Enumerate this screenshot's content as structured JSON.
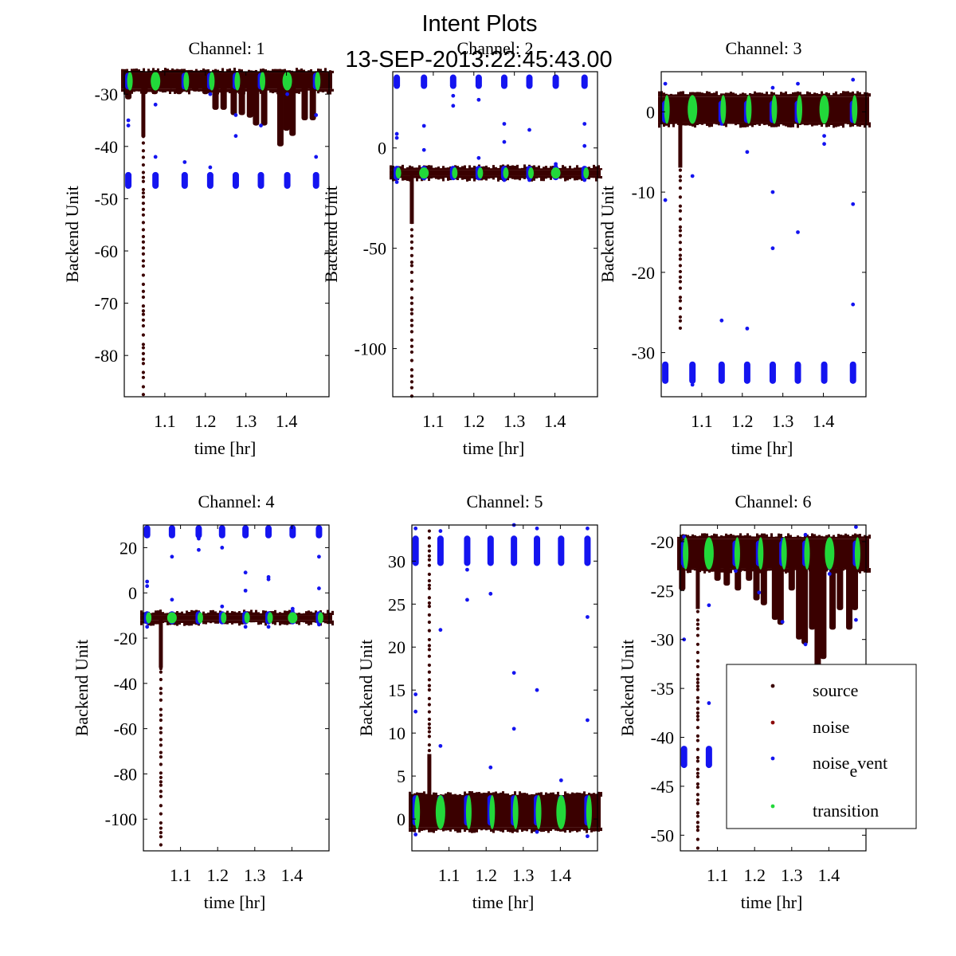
{
  "figure": {
    "title_line1": "Intent Plots",
    "title_line2": "13-SEP-2013:22:45:43.00"
  },
  "colors": {
    "source": "#3a0000",
    "noise": "#8b0a0a",
    "noise_event": "#1414f0",
    "transition": "#22d83a"
  },
  "legend": {
    "placement": "lower-right of Channel 6",
    "entries": [
      {
        "key": "source",
        "label": "source"
      },
      {
        "key": "noise",
        "label": "noise"
      },
      {
        "key": "noise_event",
        "label_main": "noise",
        "label_sub": "e",
        "label_rest": "vent"
      },
      {
        "key": "transition",
        "label": "transition"
      }
    ]
  },
  "chart_data": [
    {
      "type": "scatter",
      "title": "Channel: 1",
      "xlabel": "time [hr]",
      "ylabel": "Backend Unit",
      "xlim": [
        1.0,
        1.505
      ],
      "ylim": [
        -87.9,
        -25.7
      ],
      "xticks": [
        1.1,
        1.2,
        1.3,
        1.4
      ],
      "yticks": [
        -30,
        -40,
        -50,
        -60,
        -70,
        -80
      ],
      "grid": false,
      "source_band": {
        "center": -27.5,
        "half_width": 1.5
      },
      "source_dips": [
        [
          1.01,
          -31
        ],
        [
          1.05,
          -30
        ],
        [
          1.075,
          -30
        ],
        [
          1.115,
          -29
        ],
        [
          1.135,
          -30
        ],
        [
          1.175,
          -29.5
        ],
        [
          1.2,
          -30
        ],
        [
          1.225,
          -33
        ],
        [
          1.245,
          -33
        ],
        [
          1.27,
          -34
        ],
        [
          1.29,
          -34
        ],
        [
          1.31,
          -34.5
        ],
        [
          1.325,
          -36
        ],
        [
          1.345,
          -36
        ],
        [
          1.385,
          -40
        ],
        [
          1.4,
          -37
        ],
        [
          1.415,
          -38
        ],
        [
          1.445,
          -35
        ],
        [
          1.465,
          -35
        ]
      ],
      "source_spike": {
        "x": 1.047,
        "y_from": -29,
        "y_to": -87.9
      },
      "event_times": [
        1.01,
        1.077,
        1.149,
        1.212,
        1.275,
        1.337,
        1.402,
        1.473
      ],
      "event_levels": [
        -27.5,
        -46.5
      ],
      "event_spread": 1.0,
      "event_outliers": [
        [
          1.01,
          -35
        ],
        [
          1.01,
          -36
        ],
        [
          1.077,
          -32
        ],
        [
          1.077,
          -42
        ],
        [
          1.149,
          -43
        ],
        [
          1.212,
          -30
        ],
        [
          1.212,
          -44
        ],
        [
          1.275,
          -34
        ],
        [
          1.275,
          -38
        ],
        [
          1.337,
          -36
        ],
        [
          1.402,
          -30
        ],
        [
          1.473,
          -34
        ],
        [
          1.473,
          -42
        ]
      ],
      "transition_times": [
        1.01,
        1.077,
        1.149,
        1.212,
        1.275,
        1.337,
        1.402,
        1.473
      ],
      "transition_wide": [
        1.077,
        1.402
      ]
    },
    {
      "type": "scatter",
      "title": "Channel: 2",
      "xlabel": "time [hr]",
      "ylabel": "Backend Unit",
      "xlim": [
        1.0,
        1.505
      ],
      "ylim": [
        -124,
        38
      ],
      "xticks": [
        1.1,
        1.2,
        1.3,
        1.4
      ],
      "yticks": [
        0,
        -50,
        -100
      ],
      "grid": false,
      "source_band": {
        "center": -12.5,
        "half_width": 1.5
      },
      "source_dips": [],
      "source_spike": {
        "x": 1.047,
        "y_from": -14,
        "y_to": -124
      },
      "event_times": [
        1.01,
        1.077,
        1.149,
        1.212,
        1.275,
        1.337,
        1.402,
        1.473
      ],
      "event_levels": [
        33,
        -12.5
      ],
      "event_spread": 2.0,
      "event_outliers": [
        [
          1.01,
          7
        ],
        [
          1.01,
          5
        ],
        [
          1.01,
          -17
        ],
        [
          1.077,
          11
        ],
        [
          1.077,
          -1
        ],
        [
          1.149,
          21
        ],
        [
          1.149,
          26
        ],
        [
          1.212,
          24
        ],
        [
          1.212,
          -5
        ],
        [
          1.275,
          3
        ],
        [
          1.275,
          12
        ],
        [
          1.275,
          -16
        ],
        [
          1.337,
          9
        ],
        [
          1.337,
          -16
        ],
        [
          1.402,
          -8
        ],
        [
          1.402,
          -9
        ],
        [
          1.473,
          12
        ],
        [
          1.473,
          1
        ],
        [
          1.473,
          -16
        ]
      ],
      "transition_times": [
        1.01,
        1.077,
        1.149,
        1.212,
        1.275,
        1.337,
        1.402,
        1.473
      ],
      "transition_wide": [
        1.077,
        1.402
      ]
    },
    {
      "type": "scatter",
      "title": "Channel: 3",
      "xlabel": "time [hr]",
      "ylabel": "Backend Unit",
      "xlim": [
        1.0,
        1.505
      ],
      "ylim": [
        -35.5,
        5
      ],
      "xticks": [
        1.1,
        1.2,
        1.3,
        1.4
      ],
      "yticks": [
        0,
        -10,
        -20,
        -30
      ],
      "grid": false,
      "source_band": {
        "center": 0.3,
        "half_width": 1.6
      },
      "source_dips": [],
      "source_spike": {
        "x": 1.047,
        "y_from": -1,
        "y_to": -28
      },
      "event_times": [
        1.01,
        1.077,
        1.149,
        1.212,
        1.275,
        1.337,
        1.402,
        1.473
      ],
      "event_levels": [
        0,
        -32.5
      ],
      "event_spread": 1.0,
      "event_outliers": [
        [
          1.01,
          3.5
        ],
        [
          1.01,
          -11
        ],
        [
          1.077,
          -8
        ],
        [
          1.077,
          -34
        ],
        [
          1.149,
          -1.5
        ],
        [
          1.149,
          -26
        ],
        [
          1.212,
          -5
        ],
        [
          1.212,
          -27
        ],
        [
          1.275,
          3
        ],
        [
          1.275,
          -10
        ],
        [
          1.275,
          -17
        ],
        [
          1.337,
          3.5
        ],
        [
          1.337,
          -15
        ],
        [
          1.402,
          -3
        ],
        [
          1.402,
          -4
        ],
        [
          1.473,
          4
        ],
        [
          1.473,
          -11.5
        ],
        [
          1.473,
          -24
        ]
      ],
      "transition_times": [
        1.01,
        1.077,
        1.149,
        1.212,
        1.275,
        1.337,
        1.402,
        1.473
      ],
      "transition_wide": [
        1.077,
        1.402
      ]
    },
    {
      "type": "scatter",
      "title": "Channel: 4",
      "xlabel": "time [hr]",
      "ylabel": "Backend Unit",
      "xlim": [
        1.0,
        1.5
      ],
      "ylim": [
        -114,
        30
      ],
      "xticks": [
        1.1,
        1.2,
        1.3,
        1.4
      ],
      "yticks": [
        20,
        0,
        -20,
        -40,
        -60,
        -80,
        -100
      ],
      "grid": false,
      "source_band": {
        "center": -11,
        "half_width": 1.2
      },
      "source_dips": [],
      "source_spike": {
        "x": 1.047,
        "y_from": -12,
        "y_to": -114
      },
      "event_times": [
        1.01,
        1.077,
        1.149,
        1.212,
        1.275,
        1.337,
        1.402,
        1.473
      ],
      "event_levels": [
        27,
        -11
      ],
      "event_spread": 1.5,
      "event_outliers": [
        [
          1.01,
          5
        ],
        [
          1.01,
          3
        ],
        [
          1.01,
          -15
        ],
        [
          1.077,
          16
        ],
        [
          1.077,
          -3
        ],
        [
          1.149,
          19
        ],
        [
          1.149,
          24
        ],
        [
          1.212,
          20
        ],
        [
          1.212,
          -6
        ],
        [
          1.275,
          9
        ],
        [
          1.275,
          1
        ],
        [
          1.275,
          -15
        ],
        [
          1.337,
          7
        ],
        [
          1.337,
          6
        ],
        [
          1.337,
          -15
        ],
        [
          1.402,
          -7
        ],
        [
          1.402,
          -8
        ],
        [
          1.473,
          16
        ],
        [
          1.473,
          2
        ],
        [
          1.473,
          -14
        ]
      ],
      "transition_times": [
        1.01,
        1.077,
        1.149,
        1.212,
        1.275,
        1.337,
        1.402,
        1.473
      ],
      "transition_wide": [
        1.077,
        1.402
      ]
    },
    {
      "type": "scatter",
      "title": "Channel: 5",
      "xlabel": "time [hr]",
      "ylabel": "Backend Unit",
      "xlim": [
        1.0,
        1.5
      ],
      "ylim": [
        -3.7,
        34.2
      ],
      "xticks": [
        1.1,
        1.2,
        1.3,
        1.4
      ],
      "yticks": [
        30,
        25,
        20,
        15,
        10,
        5,
        0
      ],
      "grid": false,
      "source_band": {
        "center": 0.8,
        "half_width": 1.8
      },
      "source_dips": [],
      "source_spike": {
        "x": 1.047,
        "y_from": 2,
        "y_to": 33.5
      },
      "event_times": [
        1.01,
        1.077,
        1.149,
        1.212,
        1.275,
        1.337,
        1.402,
        1.473
      ],
      "event_levels": [
        31.2,
        1.0
      ],
      "event_spread": 1.4,
      "event_outliers": [
        [
          1.01,
          33.8
        ],
        [
          1.01,
          14.5
        ],
        [
          1.01,
          12.5
        ],
        [
          1.01,
          -1.8
        ],
        [
          1.077,
          33.5
        ],
        [
          1.077,
          22
        ],
        [
          1.077,
          8.5
        ],
        [
          1.149,
          29
        ],
        [
          1.149,
          25.5
        ],
        [
          1.212,
          26.2
        ],
        [
          1.212,
          6
        ],
        [
          1.275,
          34.2
        ],
        [
          1.275,
          17
        ],
        [
          1.275,
          10.5
        ],
        [
          1.337,
          33.8
        ],
        [
          1.337,
          15
        ],
        [
          1.337,
          -1.5
        ],
        [
          1.402,
          4.5
        ],
        [
          1.473,
          33.8
        ],
        [
          1.473,
          23.5
        ],
        [
          1.473,
          11.5
        ],
        [
          1.473,
          -2
        ]
      ],
      "transition_times": [
        1.01,
        1.077,
        1.149,
        1.212,
        1.275,
        1.337,
        1.402,
        1.473
      ],
      "transition_wide": [
        1.077,
        1.402
      ]
    },
    {
      "type": "scatter",
      "title": "Channel: 6",
      "xlabel": "time [hr]",
      "ylabel": "Backend Unit",
      "xlim": [
        1.0,
        1.5
      ],
      "ylim": [
        -51.6,
        -18.3
      ],
      "xticks": [
        1.1,
        1.2,
        1.3,
        1.4
      ],
      "yticks": [
        -20,
        -25,
        -30,
        -35,
        -40,
        -45,
        -50
      ],
      "grid": false,
      "source_band": {
        "center": -21.2,
        "half_width": 1.5
      },
      "source_dips": [
        [
          1.005,
          -25
        ],
        [
          1.02,
          -23
        ],
        [
          1.06,
          -23
        ],
        [
          1.085,
          -23
        ],
        [
          1.1,
          -24
        ],
        [
          1.125,
          -24.5
        ],
        [
          1.155,
          -25
        ],
        [
          1.185,
          -24
        ],
        [
          1.205,
          -26
        ],
        [
          1.225,
          -26.5
        ],
        [
          1.255,
          -28
        ],
        [
          1.27,
          -28.5
        ],
        [
          1.3,
          -25
        ],
        [
          1.32,
          -30
        ],
        [
          1.335,
          -30.5
        ],
        [
          1.355,
          -29
        ],
        [
          1.37,
          -33
        ],
        [
          1.385,
          -32
        ],
        [
          1.41,
          -29
        ],
        [
          1.43,
          -27
        ],
        [
          1.455,
          -29
        ],
        [
          1.47,
          -27
        ],
        [
          1.49,
          -23
        ]
      ],
      "source_spike": {
        "x": 1.047,
        "y_from": -22,
        "y_to": -51.6
      },
      "event_times": [
        1.01,
        1.077,
        1.149,
        1.212,
        1.275,
        1.337,
        1.402,
        1.473
      ],
      "event_levels": [
        -21.2
      ],
      "event_extra_clusters": [
        [
          1.01,
          -42
        ],
        [
          1.077,
          -42
        ]
      ],
      "event_spread": 1.0,
      "event_outliers": [
        [
          1.01,
          -19.5
        ],
        [
          1.01,
          -22.5
        ],
        [
          1.01,
          -30
        ],
        [
          1.077,
          -22.5
        ],
        [
          1.077,
          -26.5
        ],
        [
          1.077,
          -36.5
        ],
        [
          1.149,
          -23
        ],
        [
          1.212,
          -25.2
        ],
        [
          1.275,
          -19.8
        ],
        [
          1.275,
          -28.2
        ],
        [
          1.337,
          -19.3
        ],
        [
          1.337,
          -30.5
        ],
        [
          1.402,
          -22.7
        ],
        [
          1.402,
          -23.3
        ],
        [
          1.473,
          -18.5
        ],
        [
          1.473,
          -28
        ]
      ],
      "transition_times": [
        1.01,
        1.077,
        1.149,
        1.212,
        1.275,
        1.337,
        1.402,
        1.473
      ],
      "transition_wide": [
        1.077,
        1.402
      ]
    }
  ]
}
